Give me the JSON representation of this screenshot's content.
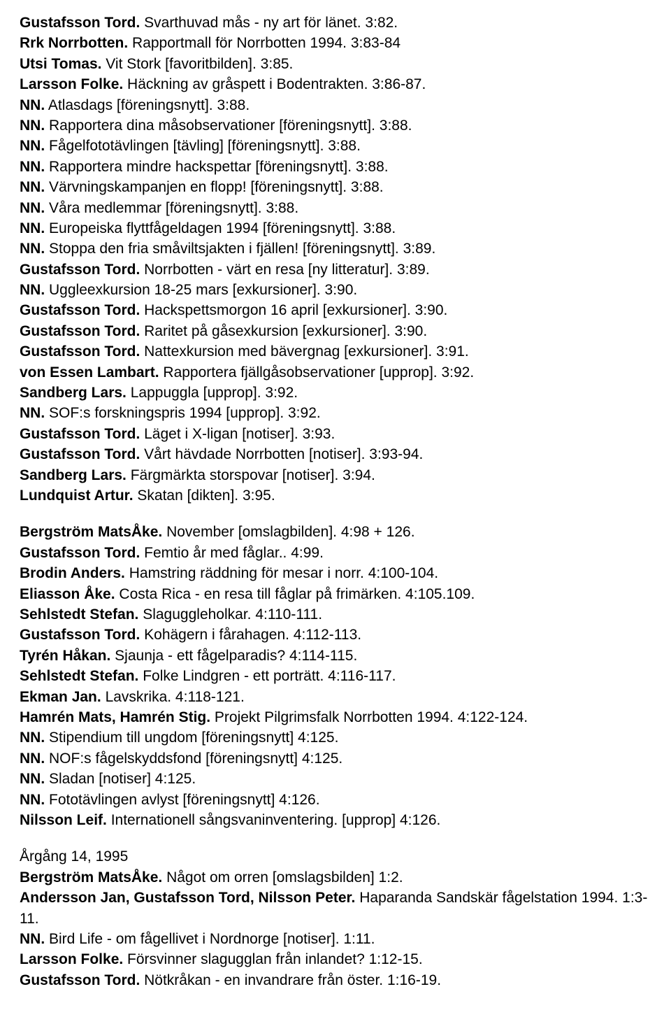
{
  "entries": [
    {
      "author": "Gustafsson Tord.",
      "text": " Svarthuvad mås - ny art för länet. 3:82."
    },
    {
      "author": "Rrk Norrbotten.",
      "text": " Rapportmall för Norrbotten 1994. 3:83-84"
    },
    {
      "author": "Utsi Tomas.",
      "text": " Vit Stork [favoritbilden]. 3:85."
    },
    {
      "author": "Larsson Folke.",
      "text": " Häckning av gråspett i Bodentrakten. 3:86-87."
    },
    {
      "author": "NN.",
      "text": " Atlasdags [föreningsnytt]. 3:88."
    },
    {
      "author": "NN.",
      "text": " Rapportera dina måsobservationer [föreningsnytt]. 3:88."
    },
    {
      "author": "NN.",
      "text": " Fågelfototävlingen [tävling] [föreningsnytt]. 3:88."
    },
    {
      "author": "NN.",
      "text": " Rapportera mindre hackspettar [föreningsnytt]. 3:88."
    },
    {
      "author": "NN.",
      "text": " Värvningskampanjen en flopp! [föreningsnytt]. 3:88."
    },
    {
      "author": "NN.",
      "text": " Våra medlemmar [föreningsnytt]. 3:88."
    },
    {
      "author": "NN.",
      "text": " Europeiska flyttfågeldagen 1994 [föreningsnytt]. 3:88."
    },
    {
      "author": "NN.",
      "text": " Stoppa den fria småviltsjakten i fjällen! [föreningsnytt]. 3:89."
    },
    {
      "author": "Gustafsson Tord.",
      "text": " Norrbotten - värt en resa [ny litteratur]. 3:89."
    },
    {
      "author": "NN.",
      "text": " Uggleexkursion 18-25 mars [exkursioner]. 3:90."
    },
    {
      "author": "Gustafsson Tord.",
      "text": " Hackspettsmorgon 16 april [exkursioner]. 3:90."
    },
    {
      "author": "Gustafsson Tord.",
      "text": " Raritet på gåsexkursion [exkursioner]. 3:90."
    },
    {
      "author": "Gustafsson Tord.",
      "text": " Nattexkursion med bävergnag [exkursioner]. 3:91."
    },
    {
      "author": "von Essen Lambart.",
      "text": " Rapportera fjällgåsobservationer [upprop]. 3:92."
    },
    {
      "author": "Sandberg Lars.",
      "text": " Lappuggla [upprop]. 3:92."
    },
    {
      "author": "NN.",
      "text": " SOF:s forskningspris 1994 [upprop]. 3:92."
    },
    {
      "author": "Gustafsson Tord.",
      "text": " Läget i X-ligan [notiser]. 3:93."
    },
    {
      "author": "Gustafsson Tord.",
      "text": " Vårt hävdade Norrbotten [notiser]. 3:93-94."
    },
    {
      "author": "Sandberg Lars.",
      "text": " Färgmärkta storspovar [notiser]. 3:94."
    },
    {
      "author": "Lundquist Artur.",
      "text": " Skatan [dikten]. 3:95."
    },
    {
      "spacer": true
    },
    {
      "author": "Bergström MatsÅke.",
      "text": " November [omslagbilden]. 4:98 + 126."
    },
    {
      "author": "Gustafsson Tord.",
      "text": " Femtio år med fåglar.. 4:99."
    },
    {
      "author": "Brodin Anders.",
      "text": " Hamstring räddning för mesar i norr. 4:100-104."
    },
    {
      "author": "Eliasson Åke.",
      "text": " Costa Rica - en resa till fåglar på frimärken. 4:105.109."
    },
    {
      "author": "Sehlstedt Stefan.",
      "text": " Slaguggleholkar. 4:110-111."
    },
    {
      "author": "Gustafsson Tord.",
      "text": " Kohägern i fårahagen. 4:112-113."
    },
    {
      "author": "Tyrén Håkan.",
      "text": " Sjaunja - ett fågelparadis? 4:114-115."
    },
    {
      "author": "Sehlstedt Stefan.",
      "text": " Folke Lindgren - ett porträtt. 4:116-117."
    },
    {
      "author": "Ekman Jan.",
      "text": " Lavskrika. 4:118-121."
    },
    {
      "author": "Hamrén Mats, Hamrén Stig.",
      "text": " Projekt Pilgrimsfalk Norrbotten 1994. 4:122-124."
    },
    {
      "author": "NN.",
      "text": " Stipendium till ungdom [föreningsnytt] 4:125."
    },
    {
      "author": "NN.",
      "text": " NOF:s fågelskyddsfond [föreningsnytt] 4:125."
    },
    {
      "author": "NN.",
      "text": " Sladan [notiser] 4:125."
    },
    {
      "author": "NN.",
      "text": " Fototävlingen avlyst [föreningsnytt] 4:126."
    },
    {
      "author": "Nilsson Leif.",
      "text": " Internationell sångsvaninventering. [upprop] 4:126."
    },
    {
      "spacer": true
    },
    {
      "plain": "Årgång 14, 1995"
    },
    {
      "author": "Bergström MatsÅke.",
      "text": " Något om orren [omslagsbilden] 1:2."
    },
    {
      "author": "Andersson Jan, Gustafsson Tord, Nilsson Peter.",
      "text": " Haparanda Sandskär fågelstation 1994. 1:3-11."
    },
    {
      "author": "NN.",
      "text": " Bird Life - om fågellivet i Nordnorge [notiser]. 1:11."
    },
    {
      "author": "Larsson Folke.",
      "text": " Försvinner slagugglan från inlandet? 1:12-15."
    },
    {
      "author": "Gustafsson Tord.",
      "text": " Nötkråkan - en invandrare från öster. 1:16-19."
    }
  ]
}
